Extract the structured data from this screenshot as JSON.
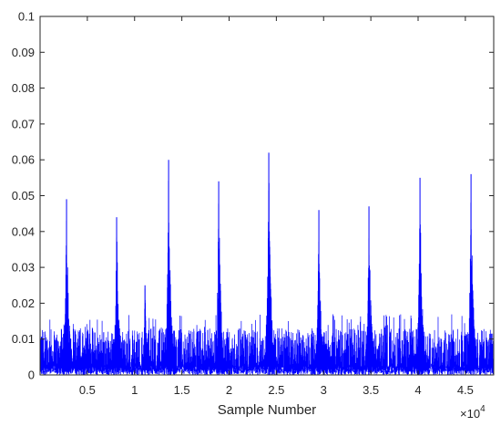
{
  "chart_data": {
    "type": "line",
    "title": "",
    "xlabel": "Sample Number",
    "ylabel": "",
    "xlim": [
      0,
      48000
    ],
    "ylim": [
      0,
      0.1
    ],
    "grid": false,
    "legend": "none",
    "x_exponent_label": "×10",
    "x_exponent_power": "4",
    "x_ticks": [
      {
        "value": 5000,
        "label": "0.5"
      },
      {
        "value": 10000,
        "label": "1"
      },
      {
        "value": 15000,
        "label": "1.5"
      },
      {
        "value": 20000,
        "label": "2"
      },
      {
        "value": 25000,
        "label": "2.5"
      },
      {
        "value": 30000,
        "label": "3"
      },
      {
        "value": 35000,
        "label": "3.5"
      },
      {
        "value": 40000,
        "label": "4"
      },
      {
        "value": 45000,
        "label": "4.5"
      }
    ],
    "y_ticks": [
      {
        "value": 0,
        "label": "0"
      },
      {
        "value": 0.01,
        "label": "0.01"
      },
      {
        "value": 0.02,
        "label": "0.02"
      },
      {
        "value": 0.03,
        "label": "0.03"
      },
      {
        "value": 0.04,
        "label": "0.04"
      },
      {
        "value": 0.05,
        "label": "0.05"
      },
      {
        "value": 0.06,
        "label": "0.06"
      },
      {
        "value": 0.07,
        "label": "0.07"
      },
      {
        "value": 0.08,
        "label": "0.08"
      },
      {
        "value": 0.09,
        "label": "0.09"
      },
      {
        "value": 0.1,
        "label": "0.1"
      }
    ],
    "series": [
      {
        "color": "#0000ff",
        "baseline_noise_max": 0.012,
        "peaks": [
          {
            "x": 2800,
            "y": 0.049
          },
          {
            "x": 8100,
            "y": 0.044
          },
          {
            "x": 11100,
            "y": 0.025
          },
          {
            "x": 13600,
            "y": 0.06
          },
          {
            "x": 18900,
            "y": 0.054
          },
          {
            "x": 24200,
            "y": 0.062
          },
          {
            "x": 29500,
            "y": 0.046
          },
          {
            "x": 34800,
            "y": 0.047
          },
          {
            "x": 40200,
            "y": 0.055
          },
          {
            "x": 45600,
            "y": 0.056
          }
        ]
      }
    ]
  }
}
